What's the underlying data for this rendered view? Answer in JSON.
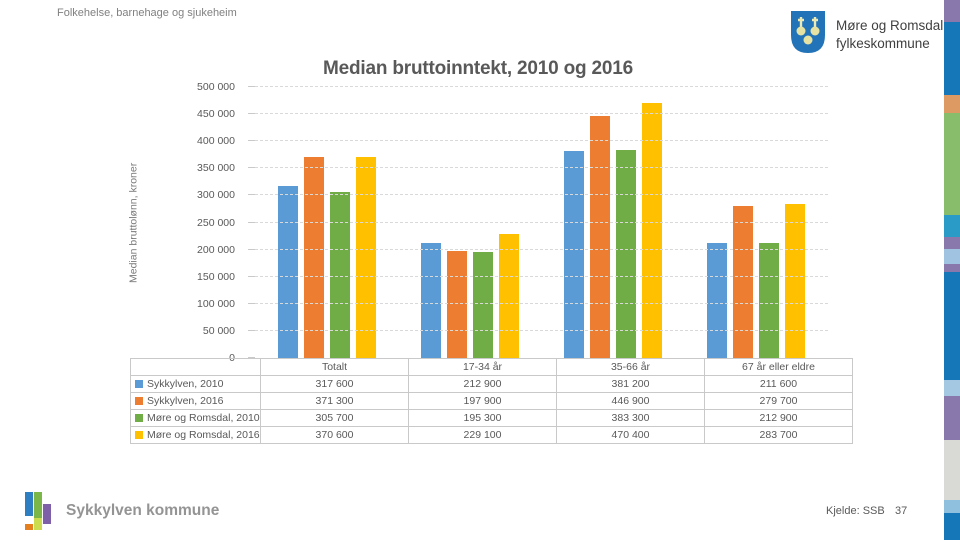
{
  "header": {
    "title": "Folkehelse, barnehage og sjukeheim"
  },
  "logo": {
    "line1": "Møre og Romsdal",
    "line2": "fylkeskommune"
  },
  "chart_data": {
    "type": "bar",
    "title": "Median bruttoinntekt, 2010 og 2016",
    "ylabel": "Median bruttolønn, kroner",
    "categories": [
      "Totalt",
      "17-34 år",
      "35-66 år",
      "67 år eller eldre"
    ],
    "series": [
      {
        "name": "Sykkylven, 2010",
        "color": "#5B9BD5",
        "values": [
          317600,
          212900,
          381200,
          211600
        ]
      },
      {
        "name": "Sykkylven, 2016",
        "color": "#ED7D31",
        "values": [
          371300,
          197900,
          446900,
          279700
        ]
      },
      {
        "name": "Møre og Romsdal, 2010",
        "color": "#70AD47",
        "values": [
          305700,
          195300,
          383300,
          212900
        ]
      },
      {
        "name": "Møre og Romsdal, 2016",
        "color": "#FFC000",
        "values": [
          370600,
          229100,
          470400,
          283700
        ]
      }
    ],
    "ylim": [
      0,
      500000
    ],
    "ytick_step": 50000,
    "grid": "horizontal-dashed",
    "legend_position": "table-left",
    "value_format": "space-thousands"
  },
  "footer": {
    "municipality": "Sykkylven kommune",
    "source": "Kjelde: SSB",
    "page_number": "37"
  }
}
